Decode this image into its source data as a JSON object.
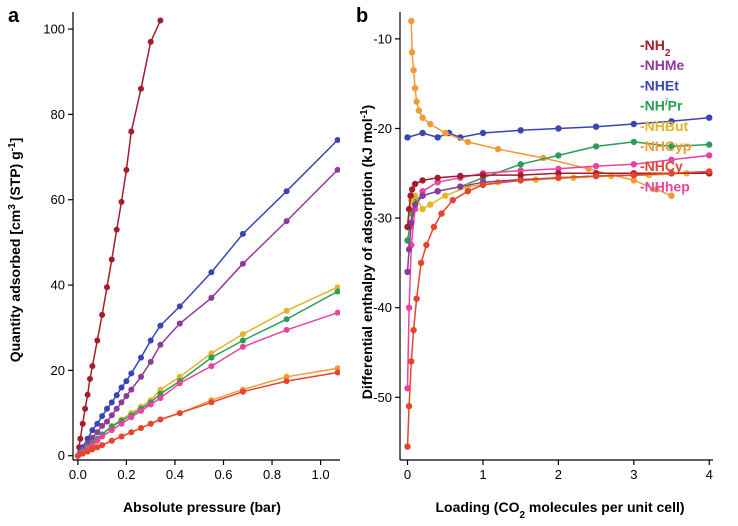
{
  "chart_data": [
    {
      "panel": "a",
      "type": "scatter",
      "xlabel": "Absolute pressure (bar)",
      "ylabel": "Quantity adsorbed [cm3 (STP) g-1]",
      "ylabel_parts": {
        "pre": "Quantity adsorbed [cm",
        "sup1": "3",
        "mid": " (STP) g",
        "sup2": "-1",
        "post": "]"
      },
      "xlim": [
        -0.02,
        1.08
      ],
      "ylim": [
        -1,
        104
      ],
      "xticks": [
        0.0,
        0.2,
        0.4,
        0.6,
        0.8,
        1.0
      ],
      "xtick_labels": [
        "0.0",
        "0.2",
        "0.4",
        "0.6",
        "0.8",
        "1.0"
      ],
      "yticks": [
        0,
        20,
        40,
        60,
        80,
        100
      ],
      "ytick_labels": [
        "0",
        "20",
        "40",
        "60",
        "80",
        "100"
      ],
      "series": [
        {
          "name": "-NH2",
          "color": "#a51d2d",
          "x": [
            0.0,
            0.005,
            0.01,
            0.02,
            0.03,
            0.04,
            0.05,
            0.06,
            0.08,
            0.1,
            0.12,
            0.14,
            0.16,
            0.18,
            0.2,
            0.22,
            0.26,
            0.3,
            0.34
          ],
          "y": [
            0.0,
            2.0,
            4.0,
            7.5,
            11.0,
            14.3,
            18.0,
            21.0,
            27.0,
            33.0,
            39.5,
            46.0,
            53.0,
            59.5,
            67.0,
            76.0,
            86.0,
            97.0,
            102.0
          ]
        },
        {
          "name": "-NHEt",
          "color": "#3a45b5",
          "x": [
            0.0,
            0.01,
            0.02,
            0.04,
            0.06,
            0.08,
            0.1,
            0.12,
            0.14,
            0.16,
            0.18,
            0.2,
            0.22,
            0.26,
            0.3,
            0.34,
            0.42,
            0.55,
            0.68,
            0.86,
            1.07
          ],
          "y": [
            0.0,
            1.0,
            2.0,
            4.0,
            6.0,
            7.5,
            9.3,
            11.0,
            12.5,
            14.2,
            16.0,
            17.5,
            19.3,
            23.0,
            27.0,
            30.5,
            35.0,
            43.0,
            52.0,
            62.0,
            74.0
          ]
        },
        {
          "name": "-NHMe",
          "color": "#8e3a9a",
          "x": [
            0.0,
            0.01,
            0.02,
            0.04,
            0.06,
            0.08,
            0.1,
            0.12,
            0.14,
            0.16,
            0.18,
            0.2,
            0.22,
            0.26,
            0.3,
            0.34,
            0.42,
            0.55,
            0.68,
            0.86,
            1.07
          ],
          "y": [
            0.0,
            0.8,
            1.5,
            3.0,
            4.2,
            5.5,
            7.0,
            8.0,
            9.5,
            11.0,
            12.5,
            14.0,
            15.5,
            18.5,
            22.0,
            26.0,
            31.0,
            37.0,
            45.0,
            55.0,
            67.0
          ]
        },
        {
          "name": "-NHBut",
          "color": "#e2b52c",
          "x": [
            0.0,
            0.02,
            0.04,
            0.06,
            0.08,
            0.1,
            0.14,
            0.18,
            0.22,
            0.26,
            0.3,
            0.34,
            0.42,
            0.55,
            0.68,
            0.86,
            1.07
          ],
          "y": [
            0.0,
            1.0,
            2.0,
            3.0,
            4.0,
            5.0,
            7.0,
            8.5,
            10.0,
            11.5,
            13.0,
            15.5,
            18.5,
            24.0,
            28.5,
            34.0,
            39.5
          ]
        },
        {
          "name": "-NHiPr",
          "color": "#2a9d57",
          "x": [
            0.0,
            0.02,
            0.04,
            0.06,
            0.08,
            0.1,
            0.14,
            0.18,
            0.22,
            0.26,
            0.3,
            0.34,
            0.42,
            0.55,
            0.68,
            0.86,
            1.07
          ],
          "y": [
            0.0,
            1.0,
            2.0,
            3.0,
            4.0,
            5.0,
            6.8,
            8.2,
            9.5,
            11.0,
            12.5,
            14.5,
            17.5,
            23.0,
            27.0,
            32.0,
            38.5
          ]
        },
        {
          "name": "-NHhep",
          "color": "#e8449f",
          "x": [
            0.0,
            0.02,
            0.04,
            0.06,
            0.08,
            0.1,
            0.14,
            0.18,
            0.22,
            0.26,
            0.3,
            0.34,
            0.42,
            0.55,
            0.68,
            0.86,
            1.07
          ],
          "y": [
            0.0,
            0.8,
            1.6,
            2.5,
            3.5,
            4.5,
            6.0,
            7.5,
            9.0,
            10.5,
            12.0,
            13.5,
            17.0,
            21.0,
            25.5,
            29.5,
            33.5
          ]
        },
        {
          "name": "-NHCyp",
          "color": "#f39a35",
          "x": [
            0.0,
            0.02,
            0.04,
            0.06,
            0.08,
            0.1,
            0.14,
            0.18,
            0.22,
            0.26,
            0.3,
            0.34,
            0.42,
            0.55,
            0.68,
            0.86,
            1.07
          ],
          "y": [
            0.0,
            0.5,
            1.0,
            1.5,
            2.0,
            2.5,
            3.5,
            4.5,
            5.5,
            6.5,
            7.5,
            8.5,
            10.0,
            13.0,
            15.5,
            18.5,
            20.5
          ]
        },
        {
          "name": "-NHCy",
          "color": "#e5452f",
          "x": [
            0.0,
            0.02,
            0.04,
            0.06,
            0.08,
            0.1,
            0.14,
            0.18,
            0.22,
            0.26,
            0.3,
            0.34,
            0.42,
            0.55,
            0.68,
            0.86,
            1.07
          ],
          "y": [
            0.0,
            0.5,
            1.0,
            1.5,
            2.0,
            2.5,
            3.5,
            4.5,
            5.5,
            6.5,
            7.5,
            8.5,
            10.0,
            12.5,
            15.0,
            17.5,
            19.5
          ]
        }
      ]
    },
    {
      "panel": "b",
      "type": "scatter",
      "xlabel": "Loading (CO2 molecules per unit cell)",
      "xlabel_parts": {
        "pre": "Loading (CO",
        "sub": "2",
        "post": " molecules per unit cell)"
      },
      "ylabel": "Differential enthalpy of adsorption (kJ mol-1)",
      "ylabel_parts": {
        "pre": "Differential enthalpy of adsorption (kJ mol",
        "sup": "-1",
        "post": ")"
      },
      "xlim": [
        -0.1,
        4.05
      ],
      "ylim": [
        -57,
        -7
      ],
      "xticks": [
        0,
        1,
        2,
        3,
        4
      ],
      "xtick_labels": [
        "0",
        "1",
        "2",
        "3",
        "4"
      ],
      "yticks": [
        -50,
        -40,
        -30,
        -20,
        -10
      ],
      "ytick_labels": [
        "-50",
        "-40",
        "-30",
        "-20",
        "-10"
      ],
      "legend_position": "top-right",
      "legend": [
        {
          "label": "-NH",
          "sub": "2",
          "sup": "",
          "tail": "",
          "color": "#a51d2d"
        },
        {
          "label": "-NHMe",
          "sub": "",
          "sup": "",
          "tail": "",
          "color": "#8e3a9a"
        },
        {
          "label": "-NHEt",
          "sub": "",
          "sup": "",
          "tail": "",
          "color": "#3a45b5"
        },
        {
          "label": "-NH",
          "sub": "",
          "sup": "i",
          "tail": "Pr",
          "color": "#2a9d57"
        },
        {
          "label": "-NHBut",
          "sub": "",
          "sup": "",
          "tail": "",
          "color": "#e2b52c"
        },
        {
          "label": "-NHCyp",
          "sub": "",
          "sup": "",
          "tail": "",
          "color": "#f39a35"
        },
        {
          "label": "-NHCy",
          "sub": "",
          "sup": "",
          "tail": "",
          "color": "#e5452f"
        },
        {
          "label": "-NHhep",
          "sub": "",
          "sup": "",
          "tail": "",
          "color": "#e8449f"
        }
      ],
      "series": [
        {
          "name": "-NHEt",
          "color": "#3a45b5",
          "x": [
            0.0,
            0.2,
            0.4,
            0.55,
            0.7,
            1.0,
            1.5,
            2.0,
            2.5,
            3.0,
            3.5,
            4.0
          ],
          "y": [
            -21.0,
            -20.5,
            -21.0,
            -20.5,
            -21.0,
            -20.5,
            -20.2,
            -20.0,
            -19.8,
            -19.5,
            -19.2,
            -18.8
          ]
        },
        {
          "name": "-NHCyp",
          "color": "#f39a35",
          "x": [
            0.05,
            0.06,
            0.08,
            0.1,
            0.12,
            0.15,
            0.2,
            0.3,
            0.5,
            0.8,
            1.2,
            1.8,
            2.4,
            3.0,
            3.3,
            3.5
          ],
          "y": [
            -8.0,
            -11.5,
            -13.5,
            -15.5,
            -17.0,
            -18.0,
            -18.8,
            -19.5,
            -20.5,
            -21.5,
            -22.3,
            -23.3,
            -24.5,
            -25.8,
            -26.8,
            -27.5
          ]
        },
        {
          "name": "-NHiPr",
          "color": "#2a9d57",
          "x": [
            0.0,
            0.03,
            0.06,
            0.1,
            0.2,
            0.4,
            0.7,
            1.0,
            1.5,
            2.0,
            2.5,
            3.0,
            3.5,
            4.0
          ],
          "y": [
            -32.5,
            -31.0,
            -29.5,
            -28.0,
            -27.5,
            -27.0,
            -26.5,
            -25.5,
            -24.0,
            -23.0,
            -22.0,
            -21.5,
            -22.0,
            -21.8
          ]
        },
        {
          "name": "-NHhep",
          "color": "#e8449f",
          "x": [
            0.0,
            0.02,
            0.05,
            0.1,
            0.2,
            0.4,
            0.7,
            1.0,
            1.5,
            2.0,
            2.5,
            3.0,
            3.5,
            4.0
          ],
          "y": [
            -49.0,
            -40.0,
            -33.0,
            -29.0,
            -27.0,
            -26.0,
            -25.5,
            -25.0,
            -24.7,
            -24.5,
            -24.2,
            -24.0,
            -23.5,
            -23.0
          ]
        },
        {
          "name": "-NHBut",
          "color": "#e2b52c",
          "x": [
            0.0,
            0.05,
            0.1,
            0.2,
            0.3,
            0.5,
            0.8,
            1.2,
            1.7,
            2.2,
            2.7,
            3.2,
            3.7,
            4.0
          ],
          "y": [
            -31.0,
            -28.0,
            -27.5,
            -29.0,
            -28.5,
            -27.5,
            -26.5,
            -26.0,
            -25.7,
            -25.5,
            -25.3,
            -25.2,
            -25.0,
            -25.0
          ]
        },
        {
          "name": "-NHMe",
          "color": "#8e3a9a",
          "x": [
            0.0,
            0.02,
            0.05,
            0.1,
            0.2,
            0.4,
            0.7,
            1.0,
            1.5,
            2.0,
            2.5,
            3.0,
            3.5,
            4.0
          ],
          "y": [
            -36.0,
            -33.5,
            -30.5,
            -28.5,
            -27.5,
            -27.0,
            -26.5,
            -26.0,
            -25.7,
            -25.5,
            -25.3,
            -25.2,
            -25.0,
            -25.0
          ]
        },
        {
          "name": "-NH2",
          "color": "#a51d2d",
          "x": [
            0.0,
            0.02,
            0.04,
            0.06,
            0.1,
            0.2,
            0.4,
            0.7,
            1.0,
            1.5,
            2.0,
            2.5,
            3.0,
            3.5,
            4.0
          ],
          "y": [
            -31.0,
            -29.0,
            -27.5,
            -26.8,
            -26.2,
            -25.8,
            -25.5,
            -25.3,
            -25.2,
            -25.2,
            -25.0,
            -25.0,
            -25.0,
            -25.0,
            -25.0
          ]
        },
        {
          "name": "-NHCy",
          "color": "#e5452f",
          "x": [
            0.0,
            0.02,
            0.05,
            0.08,
            0.12,
            0.18,
            0.25,
            0.35,
            0.45,
            0.6,
            0.8,
            1.0,
            1.5,
            2.0,
            2.5,
            3.0,
            3.5,
            4.0
          ],
          "y": [
            -55.5,
            -51.0,
            -46.0,
            -42.5,
            -39.0,
            -35.0,
            -33.0,
            -31.0,
            -29.5,
            -28.0,
            -27.0,
            -26.3,
            -25.8,
            -25.5,
            -25.3,
            -25.2,
            -25.0,
            -24.8
          ]
        }
      ]
    }
  ]
}
